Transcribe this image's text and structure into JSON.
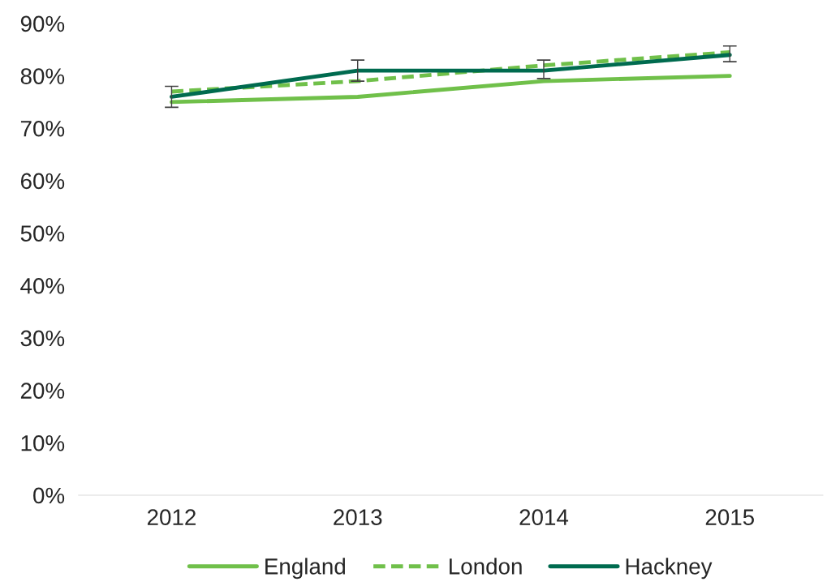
{
  "chart_data": {
    "type": "line",
    "categories": [
      "2012",
      "2013",
      "2014",
      "2015"
    ],
    "series": [
      {
        "name": "England",
        "color": "#70c04a",
        "values": [
          75,
          76,
          79,
          80
        ],
        "line_style": "solid"
      },
      {
        "name": "London",
        "color": "#70c04a",
        "values": [
          77,
          79,
          82,
          84.5
        ],
        "line_style": "dashed"
      },
      {
        "name": "Hackney",
        "color": "#006b4f",
        "values": [
          76,
          81,
          81,
          84
        ],
        "line_style": "solid",
        "errors": [
          [
            74,
            78
          ],
          [
            79,
            83
          ],
          [
            79.5,
            83
          ],
          [
            82.7,
            85.7
          ]
        ]
      }
    ],
    "ylim": [
      0,
      90
    ],
    "yticks": [
      {
        "value": 0,
        "label": "0%"
      },
      {
        "value": 10,
        "label": "10%"
      },
      {
        "value": 20,
        "label": "20%"
      },
      {
        "value": 30,
        "label": "30%"
      },
      {
        "value": 40,
        "label": "40%"
      },
      {
        "value": 50,
        "label": "50%"
      },
      {
        "value": 60,
        "label": "60%"
      },
      {
        "value": 70,
        "label": "70%"
      },
      {
        "value": 80,
        "label": "80%"
      },
      {
        "value": 90,
        "label": "90%"
      }
    ],
    "grid": false,
    "legend": "bottom",
    "marker": "none"
  }
}
